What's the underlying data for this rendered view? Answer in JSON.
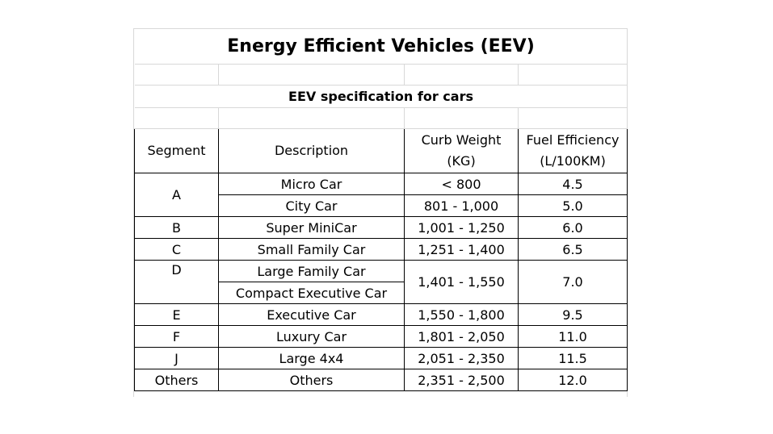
{
  "title": "Energy Efficient Vehicles (EEV)",
  "subtitle": "EEV specification for cars",
  "headers": {
    "segment": "Segment",
    "description": "Description",
    "weight_line1": "Curb Weight",
    "weight_line2": "(KG)",
    "fuel_line1": "Fuel Efficiency",
    "fuel_line2": "(L/100KM)"
  },
  "rows": [
    {
      "segment": "A",
      "description": "Micro Car",
      "weight": "< 800",
      "fuel": "4.5"
    },
    {
      "segment": "",
      "description": "City Car",
      "weight": "801 - 1,000",
      "fuel": "5.0"
    },
    {
      "segment": "B",
      "description": "Super MiniCar",
      "weight": "1,001 - 1,250",
      "fuel": "6.0"
    },
    {
      "segment": "C",
      "description": "Small Family Car",
      "weight": "1,251 - 1,400",
      "fuel": "6.5"
    },
    {
      "segment": "D",
      "description": "Large Family Car",
      "weight": "1,401 - 1,550",
      "fuel": "7.0"
    },
    {
      "segment": "",
      "description": "Compact Executive Car",
      "weight": "",
      "fuel": ""
    },
    {
      "segment": "E",
      "description": "Executive Car",
      "weight": "1,550 - 1,800",
      "fuel": "9.5"
    },
    {
      "segment": "F",
      "description": "Luxury Car",
      "weight": "1,801 - 2,050",
      "fuel": "11.0"
    },
    {
      "segment": "J",
      "description": "Large 4x4",
      "weight": "2,051 - 2,350",
      "fuel": "11.5"
    },
    {
      "segment": "Others",
      "description": "Others",
      "weight": "2,351 - 2,500",
      "fuel": "12.0"
    }
  ]
}
